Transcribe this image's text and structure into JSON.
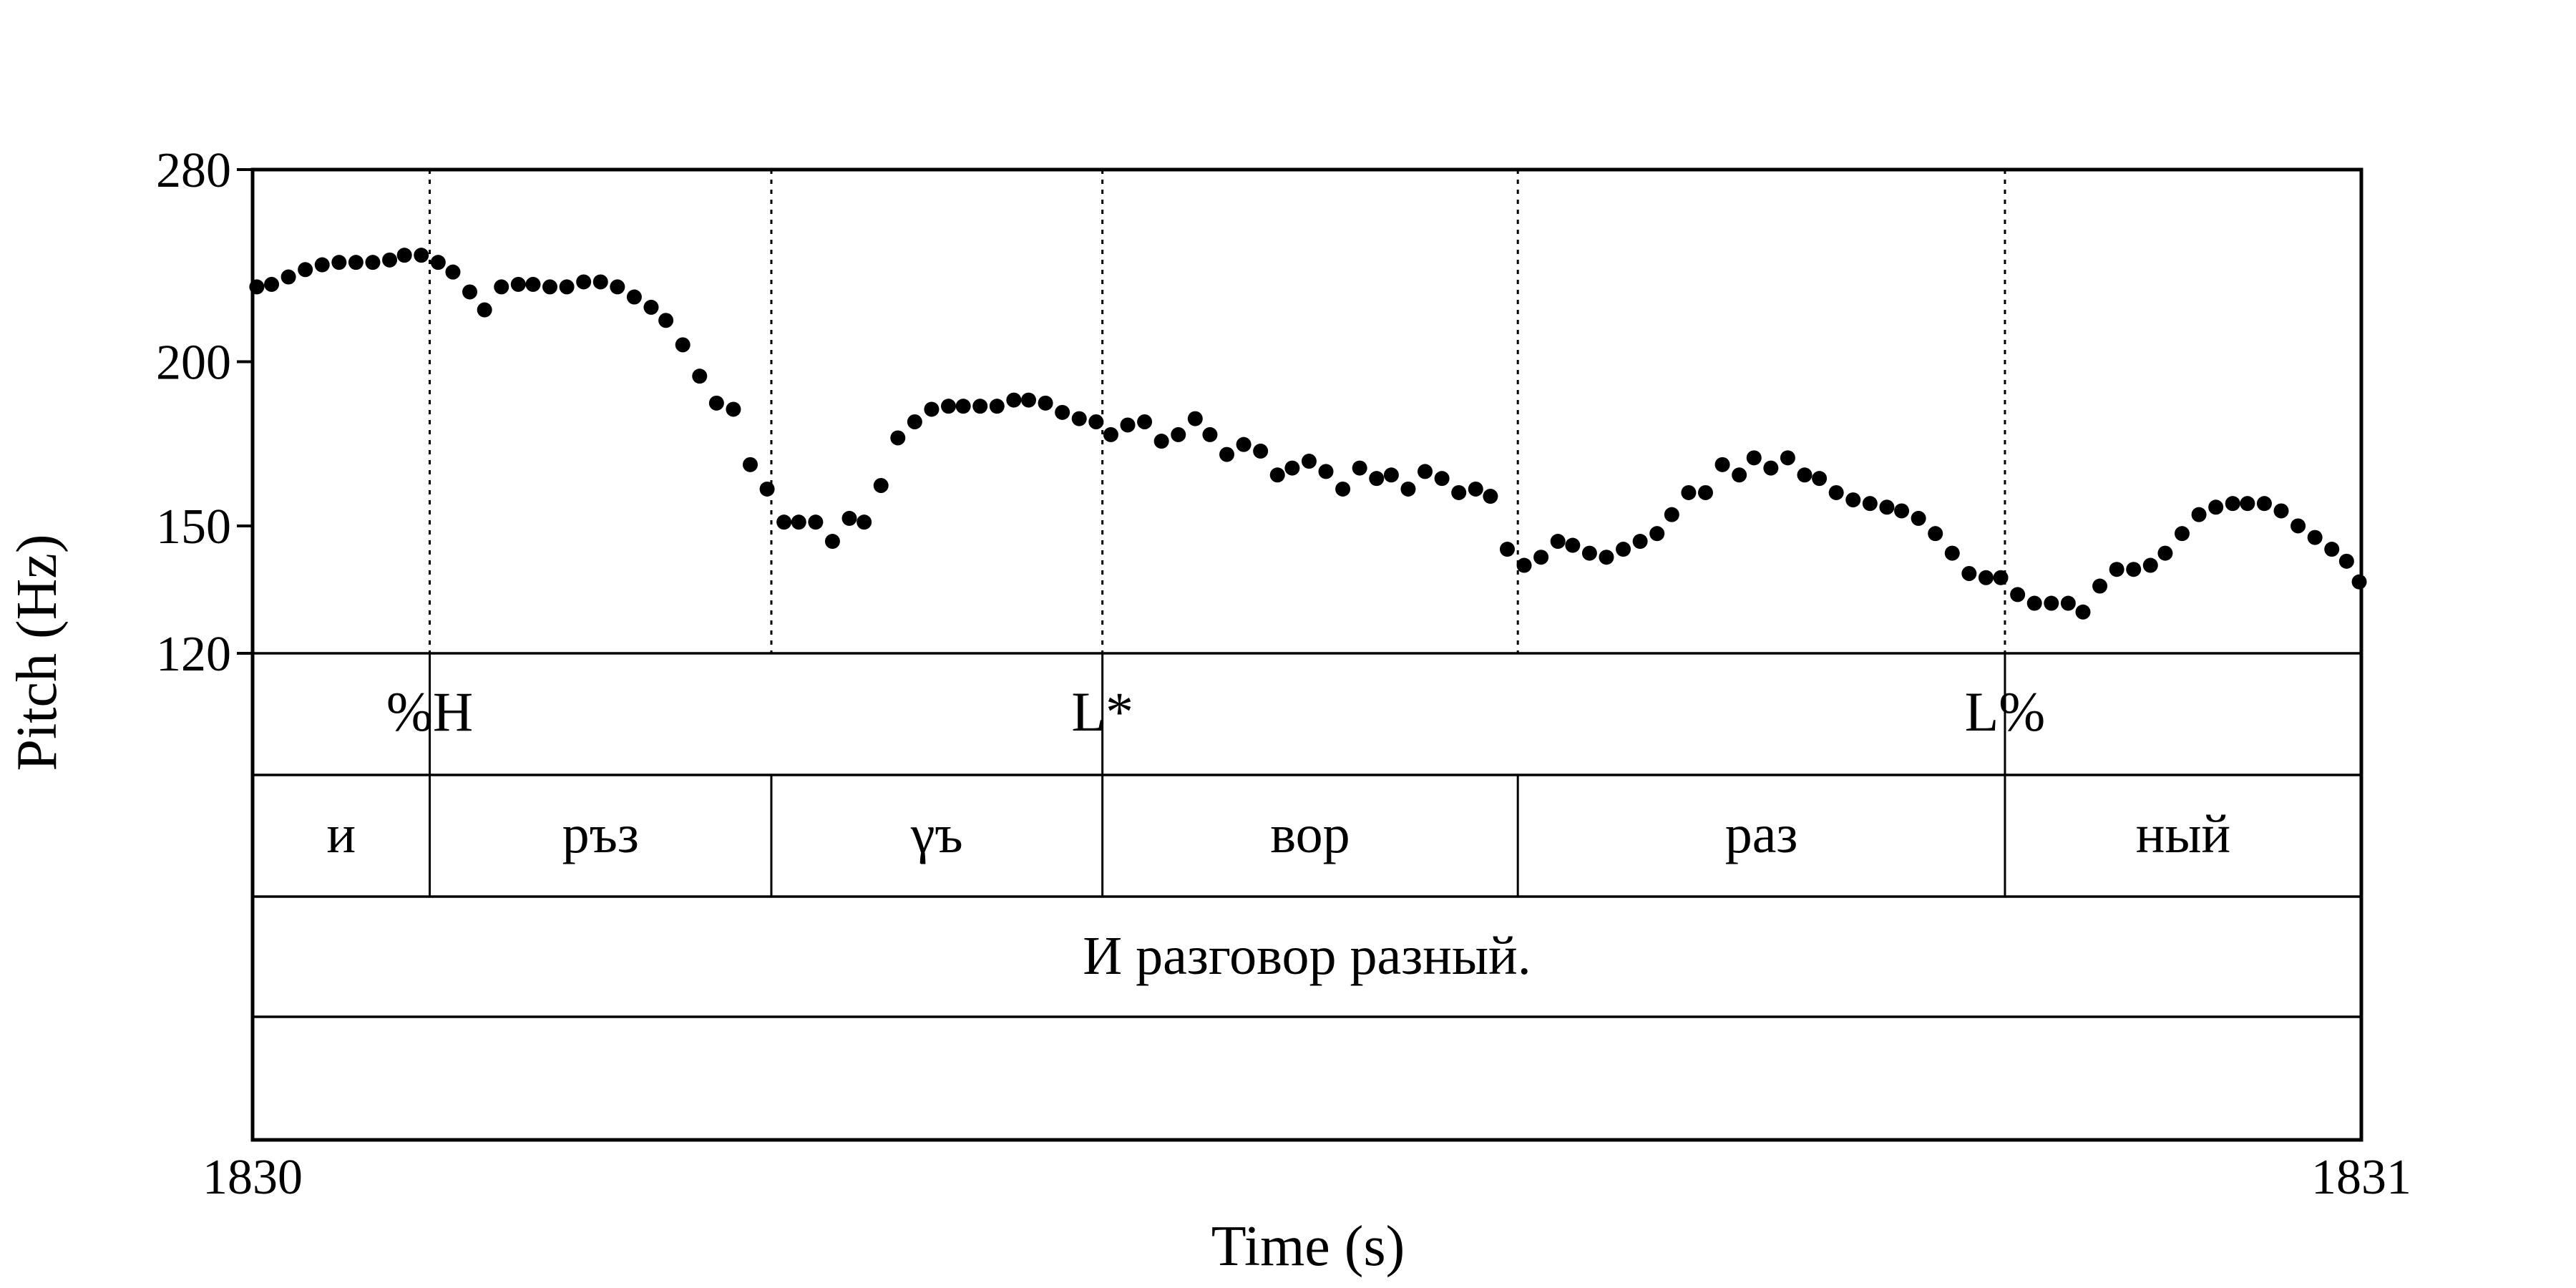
{
  "chart_data": {
    "type": "scatter",
    "xlabel": "Time (s)",
    "ylabel": "Pitch (Hz)",
    "x_ticks": [
      "1830",
      "1831"
    ],
    "y_ticks": [
      {
        "value": 120,
        "label": "120"
      },
      {
        "value": 150,
        "label": "150"
      },
      {
        "value": 200,
        "label": "200"
      },
      {
        "value": 280,
        "label": "280"
      }
    ],
    "xlim": [
      1830,
      1831
    ],
    "ylim": [
      120,
      280
    ],
    "y_scale": "log",
    "marker_color": "#000000",
    "series": [
      {
        "x": [
          1830.002,
          1830.009,
          1830.017,
          1830.025,
          1830.033,
          1830.041,
          1830.049,
          1830.057,
          1830.065,
          1830.072,
          1830.08,
          1830.088,
          1830.095,
          1830.103,
          1830.11,
          1830.118,
          1830.126,
          1830.133,
          1830.141,
          1830.149,
          1830.157,
          1830.165,
          1830.173,
          1830.181,
          1830.189,
          1830.196,
          1830.204,
          1830.212,
          1830.22,
          1830.228,
          1830.236,
          1830.244,
          1830.252,
          1830.259,
          1830.267,
          1830.275,
          1830.283,
          1830.29,
          1830.298,
          1830.306,
          1830.314,
          1830.322,
          1830.33,
          1830.337,
          1830.345,
          1830.353,
          1830.361,
          1830.368,
          1830.376,
          1830.384,
          1830.392,
          1830.4,
          1830.407,
          1830.415,
          1830.423,
          1830.431,
          1830.439,
          1830.447,
          1830.454,
          1830.462,
          1830.47,
          1830.478,
          1830.486,
          1830.493,
          1830.501,
          1830.509,
          1830.517,
          1830.525,
          1830.533,
          1830.54,
          1830.548,
          1830.556,
          1830.564,
          1830.572,
          1830.58,
          1830.587,
          1830.595,
          1830.603,
          1830.611,
          1830.619,
          1830.626,
          1830.634,
          1830.642,
          1830.65,
          1830.658,
          1830.666,
          1830.673,
          1830.681,
          1830.689,
          1830.697,
          1830.705,
          1830.712,
          1830.72,
          1830.728,
          1830.736,
          1830.743,
          1830.751,
          1830.759,
          1830.767,
          1830.775,
          1830.782,
          1830.79,
          1830.798,
          1830.806,
          1830.814,
          1830.822,
          1830.829,
          1830.837,
          1830.845,
          1830.853,
          1830.861,
          1830.868,
          1830.876,
          1830.884,
          1830.892,
          1830.9,
          1830.907,
          1830.915,
          1830.923,
          1830.931,
          1830.939,
          1830.946,
          1830.954,
          1830.962,
          1830.97,
          1830.978,
          1830.986,
          1830.993,
          1830.999
        ],
        "y": [
          228,
          229,
          232,
          235,
          237,
          238,
          238,
          238,
          239,
          241,
          241,
          238,
          234,
          226,
          219,
          228,
          229,
          229,
          228,
          228,
          230,
          230,
          228,
          224,
          220,
          215,
          206,
          195,
          186,
          184,
          167,
          160,
          151,
          151,
          151,
          146,
          152,
          151,
          161,
          175,
          180,
          184,
          185,
          185,
          185,
          185,
          187,
          187,
          186,
          183,
          181,
          180,
          176,
          179,
          180,
          174,
          176,
          181,
          176,
          170,
          173,
          171,
          164,
          166,
          168,
          165,
          160,
          166,
          163,
          164,
          160,
          165,
          163,
          159,
          160,
          158,
          144,
          140,
          142,
          146,
          145,
          143,
          142,
          144,
          146,
          148,
          153,
          159,
          159,
          167,
          164,
          169,
          166,
          169,
          164,
          163,
          159,
          157,
          156,
          155,
          154,
          152,
          148,
          143,
          138,
          137,
          137,
          133,
          131,
          131,
          131,
          129,
          135,
          139,
          139,
          140,
          143,
          148,
          153,
          155,
          156,
          156,
          156,
          154,
          150,
          147,
          144,
          141,
          136
        ]
      }
    ],
    "boundaries": [
      1830.084,
      1830.246,
      1830.403,
      1830.6,
      1830.831
    ]
  },
  "tiers": {
    "tones": [
      {
        "label": "%H",
        "time": 1830.084
      },
      {
        "label": "L*",
        "time": 1830.403
      },
      {
        "label": "L%",
        "time": 1830.831
      }
    ],
    "syllables": [
      {
        "label": "и",
        "start": 1830.0,
        "end": 1830.084
      },
      {
        "label": "ръз",
        "start": 1830.084,
        "end": 1830.246
      },
      {
        "label": "γъ",
        "start": 1830.246,
        "end": 1830.403
      },
      {
        "label": "вор",
        "start": 1830.403,
        "end": 1830.6
      },
      {
        "label": "раз",
        "start": 1830.6,
        "end": 1830.831
      },
      {
        "label": "ный",
        "start": 1830.831,
        "end": 1831.0
      }
    ],
    "sentence": "И разговор разный."
  }
}
